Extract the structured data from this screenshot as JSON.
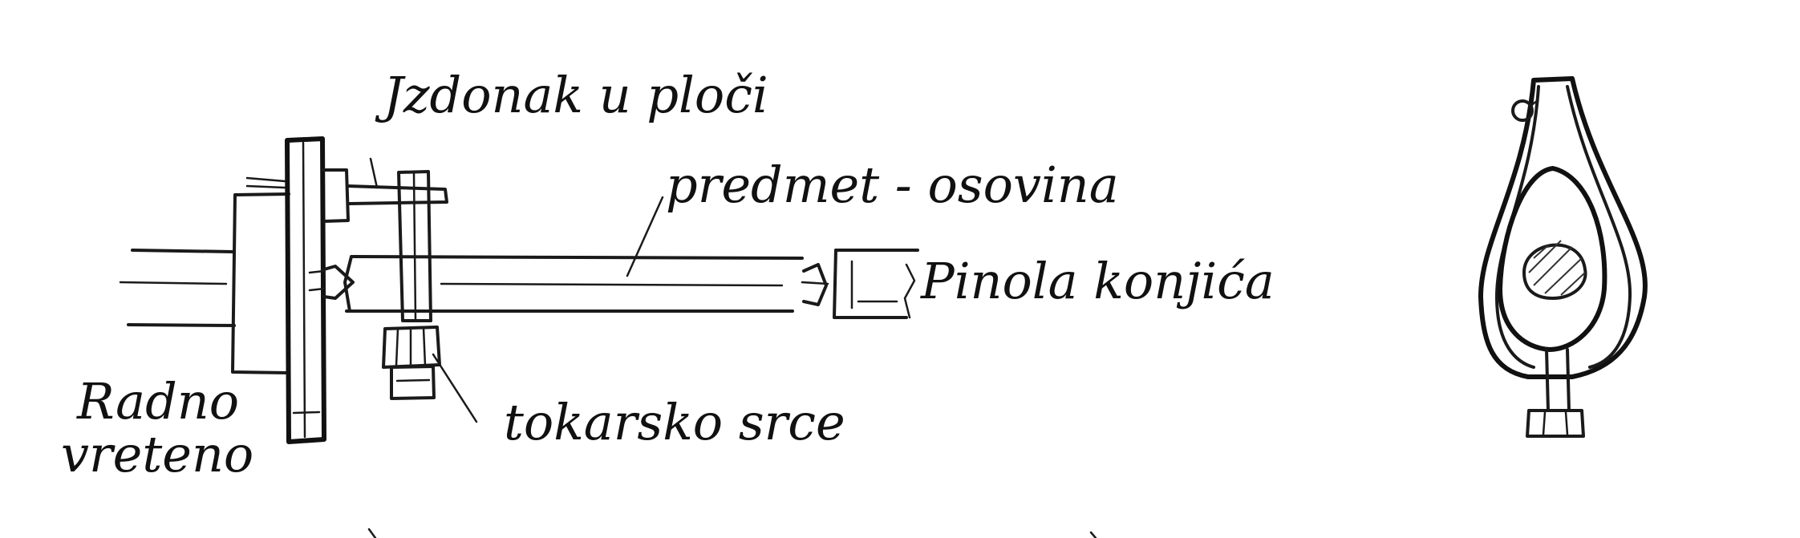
{
  "labels": {
    "workpiece_holder": "Jzdonak u ploči",
    "workpiece": "predmet - osovina",
    "tailstock_quill": "Pinola konjića",
    "main_spindle_line1": "Radno",
    "main_spindle_line2": "vreteno",
    "lathe_dog": "tokarsko srce"
  }
}
